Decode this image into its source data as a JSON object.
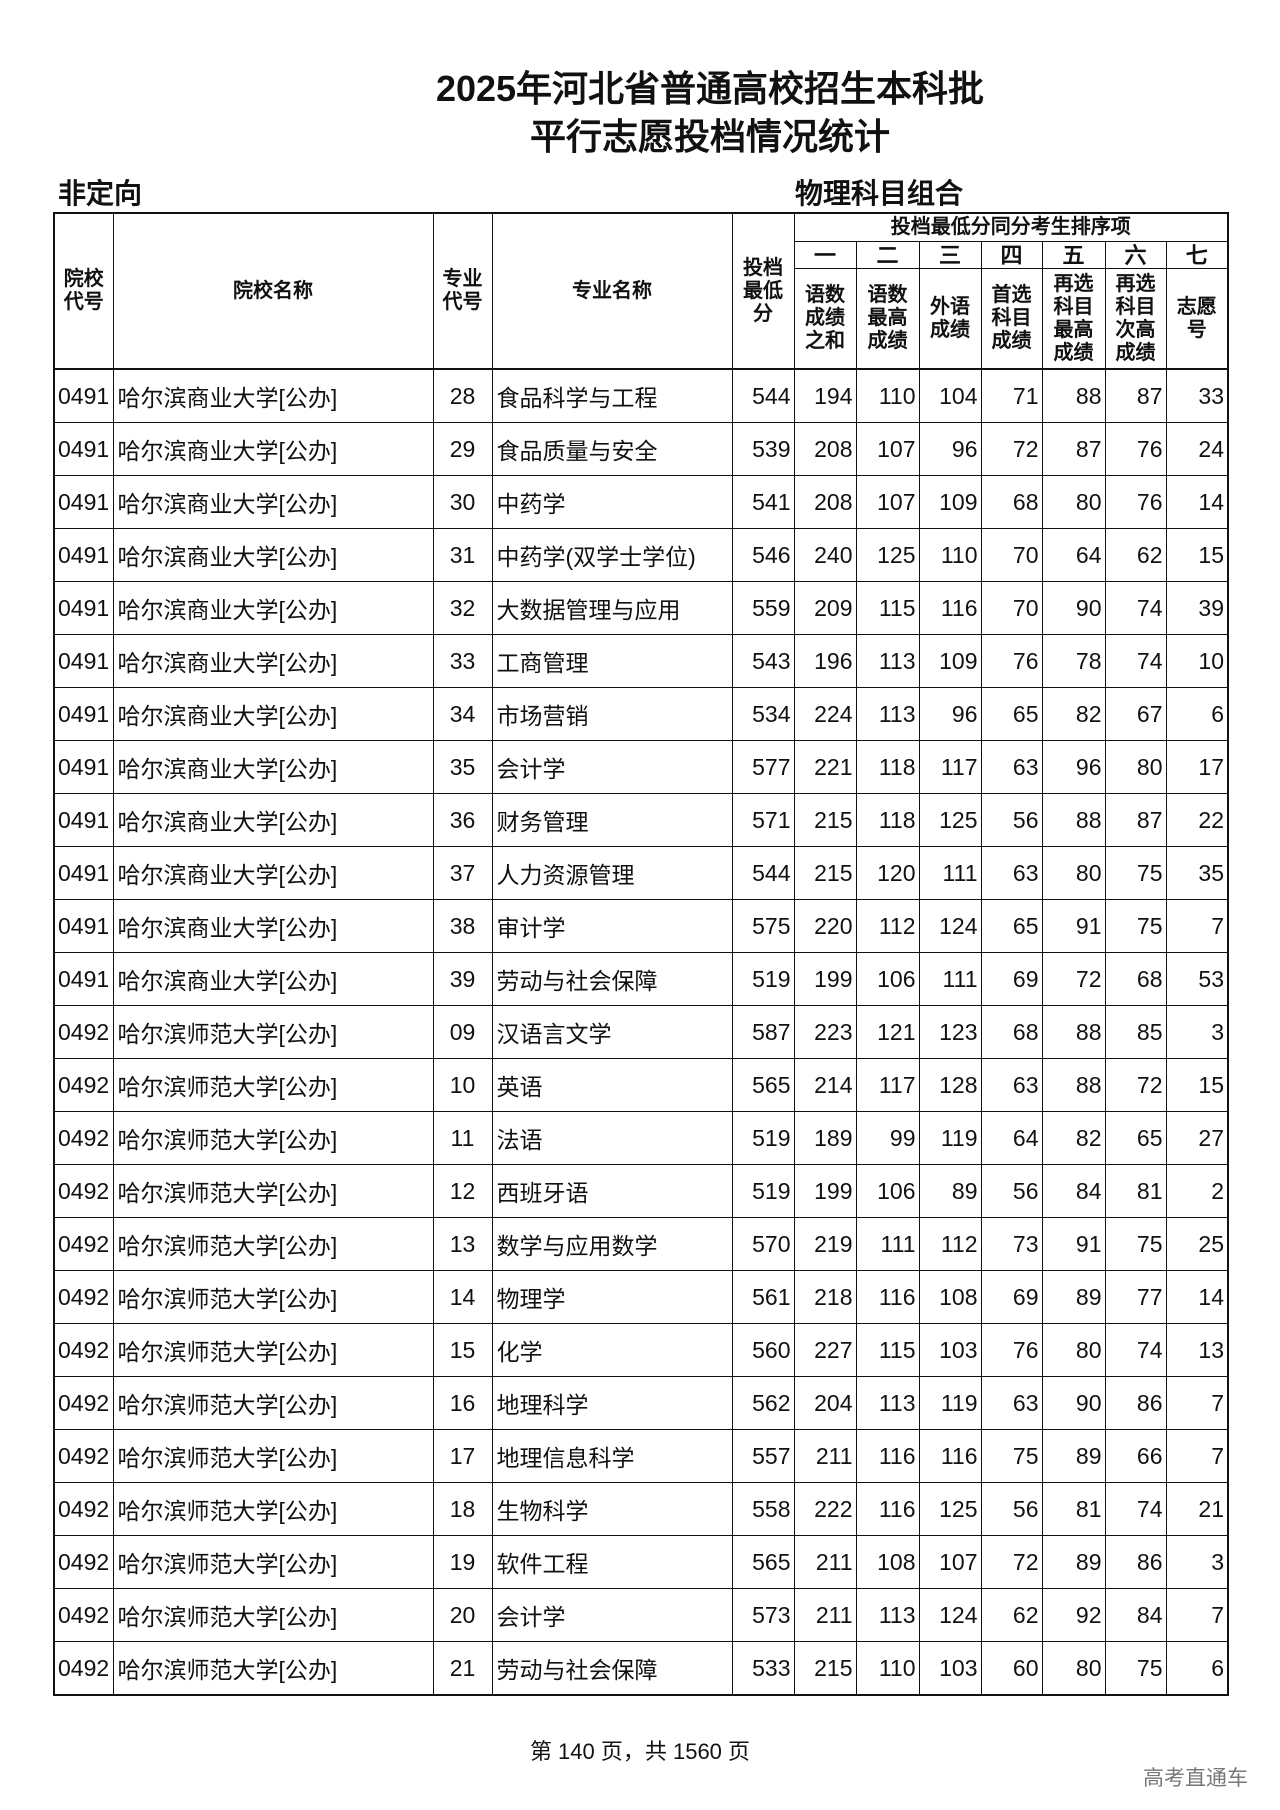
{
  "title_line1": "2025年河北省普通高校招生本科批",
  "title_line2": "平行志愿投档情况统计",
  "subtitle_left": "非定向",
  "subtitle_right": "物理科目组合",
  "header": {
    "school_code": "院校代号",
    "school_name": "院校名称",
    "major_code": "专业代号",
    "major_name": "专业名称",
    "min_score": "投档最低分",
    "group_title": "投档最低分同分考生排序项",
    "order": [
      "一",
      "二",
      "三",
      "四",
      "五",
      "六",
      "七"
    ],
    "items": [
      "语数成绩之和",
      "语数最高成绩",
      "外语成绩",
      "首选科目成绩",
      "再选科目最高成绩",
      "再选科目次高成绩",
      "志愿号"
    ]
  },
  "rows": [
    [
      "0491",
      "哈尔滨商业大学[公办]",
      "28",
      "食品科学与工程",
      "544",
      "194",
      "110",
      "104",
      "71",
      "88",
      "87",
      "33"
    ],
    [
      "0491",
      "哈尔滨商业大学[公办]",
      "29",
      "食品质量与安全",
      "539",
      "208",
      "107",
      "96",
      "72",
      "87",
      "76",
      "24"
    ],
    [
      "0491",
      "哈尔滨商业大学[公办]",
      "30",
      "中药学",
      "541",
      "208",
      "107",
      "109",
      "68",
      "80",
      "76",
      "14"
    ],
    [
      "0491",
      "哈尔滨商业大学[公办]",
      "31",
      "中药学(双学士学位)",
      "546",
      "240",
      "125",
      "110",
      "70",
      "64",
      "62",
      "15"
    ],
    [
      "0491",
      "哈尔滨商业大学[公办]",
      "32",
      "大数据管理与应用",
      "559",
      "209",
      "115",
      "116",
      "70",
      "90",
      "74",
      "39"
    ],
    [
      "0491",
      "哈尔滨商业大学[公办]",
      "33",
      "工商管理",
      "543",
      "196",
      "113",
      "109",
      "76",
      "78",
      "74",
      "10"
    ],
    [
      "0491",
      "哈尔滨商业大学[公办]",
      "34",
      "市场营销",
      "534",
      "224",
      "113",
      "96",
      "65",
      "82",
      "67",
      "6"
    ],
    [
      "0491",
      "哈尔滨商业大学[公办]",
      "35",
      "会计学",
      "577",
      "221",
      "118",
      "117",
      "63",
      "96",
      "80",
      "17"
    ],
    [
      "0491",
      "哈尔滨商业大学[公办]",
      "36",
      "财务管理",
      "571",
      "215",
      "118",
      "125",
      "56",
      "88",
      "87",
      "22"
    ],
    [
      "0491",
      "哈尔滨商业大学[公办]",
      "37",
      "人力资源管理",
      "544",
      "215",
      "120",
      "111",
      "63",
      "80",
      "75",
      "35"
    ],
    [
      "0491",
      "哈尔滨商业大学[公办]",
      "38",
      "审计学",
      "575",
      "220",
      "112",
      "124",
      "65",
      "91",
      "75",
      "7"
    ],
    [
      "0491",
      "哈尔滨商业大学[公办]",
      "39",
      "劳动与社会保障",
      "519",
      "199",
      "106",
      "111",
      "69",
      "72",
      "68",
      "53"
    ],
    [
      "0492",
      "哈尔滨师范大学[公办]",
      "09",
      "汉语言文学",
      "587",
      "223",
      "121",
      "123",
      "68",
      "88",
      "85",
      "3"
    ],
    [
      "0492",
      "哈尔滨师范大学[公办]",
      "10",
      "英语",
      "565",
      "214",
      "117",
      "128",
      "63",
      "88",
      "72",
      "15"
    ],
    [
      "0492",
      "哈尔滨师范大学[公办]",
      "11",
      "法语",
      "519",
      "189",
      "99",
      "119",
      "64",
      "82",
      "65",
      "27"
    ],
    [
      "0492",
      "哈尔滨师范大学[公办]",
      "12",
      "西班牙语",
      "519",
      "199",
      "106",
      "89",
      "56",
      "84",
      "81",
      "2"
    ],
    [
      "0492",
      "哈尔滨师范大学[公办]",
      "13",
      "数学与应用数学",
      "570",
      "219",
      "111",
      "112",
      "73",
      "91",
      "75",
      "25"
    ],
    [
      "0492",
      "哈尔滨师范大学[公办]",
      "14",
      "物理学",
      "561",
      "218",
      "116",
      "108",
      "69",
      "89",
      "77",
      "14"
    ],
    [
      "0492",
      "哈尔滨师范大学[公办]",
      "15",
      "化学",
      "560",
      "227",
      "115",
      "103",
      "76",
      "80",
      "74",
      "13"
    ],
    [
      "0492",
      "哈尔滨师范大学[公办]",
      "16",
      "地理科学",
      "562",
      "204",
      "113",
      "119",
      "63",
      "90",
      "86",
      "7"
    ],
    [
      "0492",
      "哈尔滨师范大学[公办]",
      "17",
      "地理信息科学",
      "557",
      "211",
      "116",
      "116",
      "75",
      "89",
      "66",
      "7"
    ],
    [
      "0492",
      "哈尔滨师范大学[公办]",
      "18",
      "生物科学",
      "558",
      "222",
      "116",
      "125",
      "56",
      "81",
      "74",
      "21"
    ],
    [
      "0492",
      "哈尔滨师范大学[公办]",
      "19",
      "软件工程",
      "565",
      "211",
      "108",
      "107",
      "72",
      "89",
      "86",
      "3"
    ],
    [
      "0492",
      "哈尔滨师范大学[公办]",
      "20",
      "会计学",
      "573",
      "211",
      "113",
      "124",
      "62",
      "92",
      "84",
      "7"
    ],
    [
      "0492",
      "哈尔滨师范大学[公办]",
      "21",
      "劳动与社会保障",
      "533",
      "215",
      "110",
      "103",
      "60",
      "80",
      "75",
      "6"
    ]
  ],
  "footer": "第 140 页，共 1560 页",
  "watermark": "高考直通车"
}
